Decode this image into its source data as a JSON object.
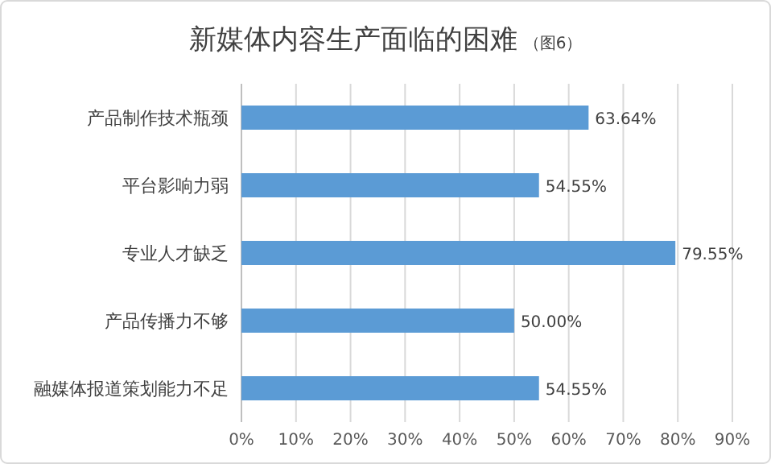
{
  "chart_data": {
    "type": "bar",
    "orientation": "horizontal",
    "title": "新媒体内容生产面临的困难",
    "subtitle": "（图6）",
    "categories": [
      "产品制作技术瓶颈",
      "平台影响力弱",
      "专业人才缺乏",
      "产品传播力不够",
      "融媒体报道策划能力不足"
    ],
    "series": [
      {
        "color": "#5b9bd5",
        "values": [
          63.64,
          54.55,
          79.55,
          50.0,
          54.55
        ],
        "value_labels": [
          "63.64%",
          "54.55%",
          "79.55%",
          "50.00%",
          "54.55%"
        ]
      }
    ],
    "xlim": [
      0,
      90
    ],
    "xticks": [
      {
        "value": 0,
        "label": "0%"
      },
      {
        "value": 10,
        "label": "10%"
      },
      {
        "value": 20,
        "label": "20%"
      },
      {
        "value": 30,
        "label": "30%"
      },
      {
        "value": 40,
        "label": "40%"
      },
      {
        "value": 50,
        "label": "50%"
      },
      {
        "value": 60,
        "label": "60%"
      },
      {
        "value": 70,
        "label": "70%"
      },
      {
        "value": 80,
        "label": "80%"
      },
      {
        "value": 90,
        "label": "90%"
      }
    ],
    "grid": "x"
  }
}
